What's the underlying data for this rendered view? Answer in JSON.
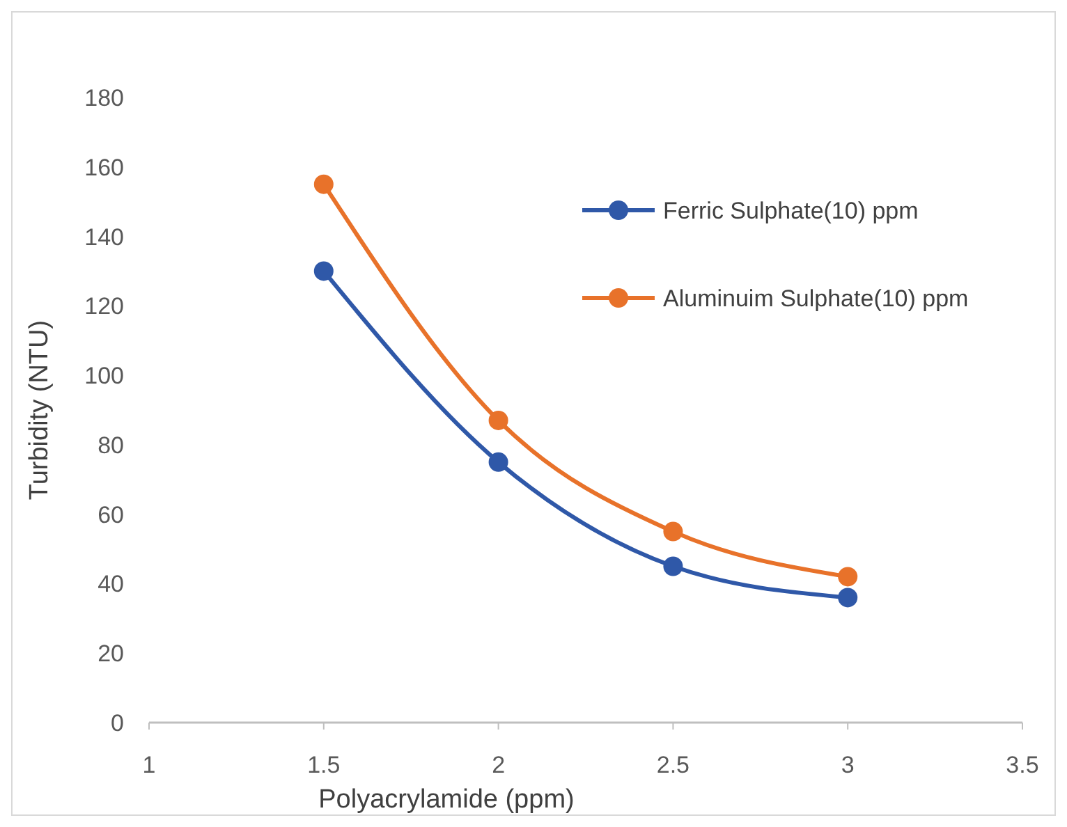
{
  "chart_data": {
    "type": "line",
    "xlabel": "Polyacrylamide (ppm)",
    "ylabel": "Turbidity (NTU)",
    "xlim": [
      1,
      3.5
    ],
    "xticks": [
      1,
      1.5,
      2,
      2.5,
      3,
      3.5
    ],
    "ylim": [
      0,
      180
    ],
    "yticks": [
      0,
      20,
      40,
      60,
      80,
      100,
      120,
      140,
      160,
      180
    ],
    "grid": false,
    "legend": "top right",
    "marker": "circle",
    "line_style": "solid",
    "series": [
      {
        "name": "Ferric Sulphate(10) ppm",
        "color": "#2f58a8",
        "x": [
          1.5,
          2,
          2.5,
          3
        ],
        "values": [
          130,
          75,
          45,
          36
        ]
      },
      {
        "name": "Aluminuim Sulphate(10) ppm",
        "color": "#e8722a",
        "x": [
          1.5,
          2,
          2.5,
          3
        ],
        "values": [
          155,
          87,
          55,
          42
        ]
      }
    ]
  }
}
